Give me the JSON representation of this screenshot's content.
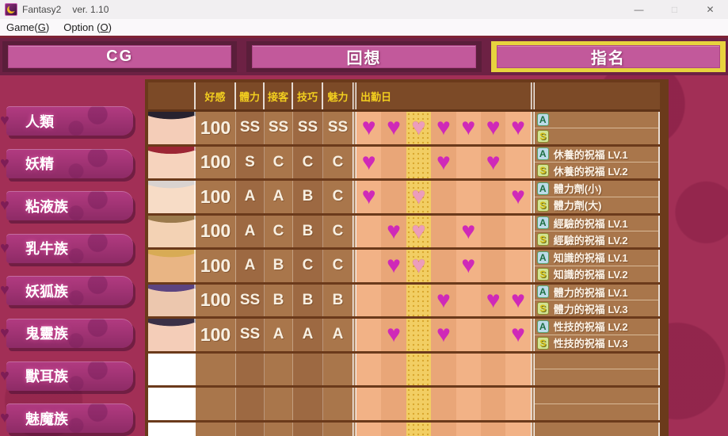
{
  "window": {
    "title": "Fantasy2",
    "version": "ver. 1.10",
    "controls": {
      "minimize": "—",
      "maximize": "□",
      "close": "✕"
    }
  },
  "menu": {
    "items": [
      {
        "pre": "Game(",
        "key": "G",
        "post": ")"
      },
      {
        "pre": "Option (",
        "key": "O",
        "post": ")"
      }
    ]
  },
  "tabs": [
    {
      "label": "CG",
      "active": false
    },
    {
      "label": "回想",
      "active": false
    },
    {
      "label": "指名",
      "active": true
    }
  ],
  "sidebar": {
    "items": [
      "人類",
      "妖精",
      "粘液族",
      "乳牛族",
      "妖狐族",
      "鬼靈族",
      "獸耳族",
      "魅魔族"
    ]
  },
  "colors": {
    "background": "#a22f56",
    "table_border": "#6b3a1b",
    "header_bg": "#7c4a27",
    "header_text": "#f2ce1f",
    "today_column": "#f2ce63",
    "heart": "#cf29b8",
    "heart_reserved": "#ec9dbb",
    "active_tab_frame": "#e7d33e",
    "tab_button": "#c2599b",
    "sidebar_button": "#a63277"
  },
  "table": {
    "headers": {
      "affection": "好感",
      "stamina": "體力",
      "service": "接客",
      "technique": "技巧",
      "charm": "魅力",
      "schedule": "出勤日"
    },
    "today_column_index": 3,
    "rows": [
      {
        "portrait": {
          "hair": "#28222f",
          "skin": "#f4cdb8"
        },
        "affection": "100",
        "stats": [
          "SS",
          "SS",
          "SS",
          "SS"
        ],
        "days": [
          1,
          1,
          2,
          1,
          1,
          1,
          1
        ],
        "items": [
          {
            "grade": "A",
            "label": ""
          },
          {
            "grade": "S",
            "label": ""
          }
        ]
      },
      {
        "portrait": {
          "hair": "#9c2634",
          "skin": "#f6d3bd"
        },
        "affection": "100",
        "stats": [
          "S",
          "C",
          "C",
          "C"
        ],
        "days": [
          1,
          0,
          0,
          1,
          0,
          1,
          0
        ],
        "items": [
          {
            "grade": "A",
            "label": "休養的祝福 LV.1"
          },
          {
            "grade": "S",
            "label": "休養的祝福 LV.2"
          }
        ]
      },
      {
        "portrait": {
          "hair": "#d9d3d0",
          "skin": "#f7dcc6"
        },
        "affection": "100",
        "stats": [
          "A",
          "A",
          "B",
          "C"
        ],
        "days": [
          1,
          0,
          2,
          0,
          0,
          0,
          1
        ],
        "items": [
          {
            "grade": "A",
            "label": "體力劑(小)"
          },
          {
            "grade": "S",
            "label": "體力劑(大)"
          }
        ]
      },
      {
        "portrait": {
          "hair": "#9b7a4c",
          "skin": "#f3d2b4"
        },
        "affection": "100",
        "stats": [
          "A",
          "C",
          "B",
          "C"
        ],
        "days": [
          0,
          1,
          2,
          0,
          1,
          0,
          0
        ],
        "items": [
          {
            "grade": "A",
            "label": "經驗的祝福 LV.1"
          },
          {
            "grade": "S",
            "label": "經驗的祝福 LV.2"
          }
        ]
      },
      {
        "portrait": {
          "hair": "#d8ab55",
          "skin": "#e9b584"
        },
        "affection": "100",
        "stats": [
          "A",
          "B",
          "C",
          "C"
        ],
        "days": [
          0,
          1,
          2,
          0,
          1,
          0,
          0
        ],
        "items": [
          {
            "grade": "A",
            "label": "知識的祝福 LV.1"
          },
          {
            "grade": "S",
            "label": "知識的祝福 LV.2"
          }
        ]
      },
      {
        "portrait": {
          "hair": "#5c4480",
          "skin": "#ecc7ae"
        },
        "affection": "100",
        "stats": [
          "SS",
          "B",
          "B",
          "B"
        ],
        "days": [
          0,
          0,
          0,
          1,
          0,
          1,
          1
        ],
        "items": [
          {
            "grade": "A",
            "label": "體力的祝福 LV.1"
          },
          {
            "grade": "S",
            "label": "體力的祝福 LV.3"
          }
        ]
      },
      {
        "portrait": {
          "hair": "#3a3046",
          "skin": "#f4cdb8"
        },
        "affection": "100",
        "stats": [
          "SS",
          "A",
          "A",
          "A"
        ],
        "days": [
          0,
          1,
          0,
          1,
          0,
          0,
          1
        ],
        "items": [
          {
            "grade": "A",
            "label": "性技的祝福 LV.2"
          },
          {
            "grade": "S",
            "label": "性技的祝福 LV.3"
          }
        ]
      },
      {
        "empty": true
      },
      {
        "empty": true
      },
      {
        "empty": true
      }
    ]
  }
}
